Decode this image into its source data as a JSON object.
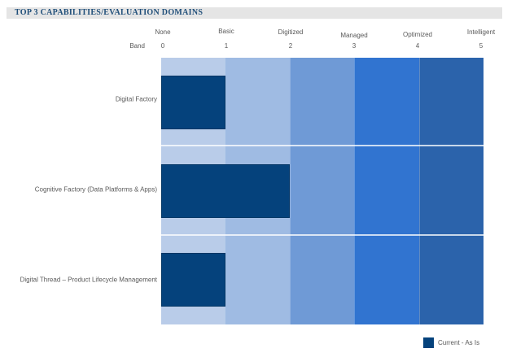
{
  "header": {
    "title": "TOP 3 CAPABILITIES/EVALUATION DOMAINS"
  },
  "chart_data": {
    "type": "bar",
    "orientation": "horizontal",
    "title": "TOP 3 CAPABILITIES/EVALUATION DOMAINS",
    "categories": [
      "Digital Factory",
      "Cognitive Factory (Data Platforms & Apps)",
      "Digital Thread – Product Lifecycle Management"
    ],
    "series": [
      {
        "name": "Current - As Is",
        "values": [
          1,
          2,
          1
        ],
        "color": "#05427c"
      }
    ],
    "values": [
      1,
      2,
      1
    ],
    "x_axis": {
      "label": "Band",
      "ticks": [
        "0",
        "1",
        "2",
        "3",
        "4",
        "5"
      ],
      "tick_names": [
        "None",
        "Basic",
        "Digitized",
        "Managed",
        "Optimized",
        "Intelligent"
      ],
      "range": [
        0,
        5
      ],
      "grid": false
    },
    "background_bands": [
      {
        "from": 0,
        "to": 1,
        "level": "None",
        "color": "#b9cce9"
      },
      {
        "from": 1,
        "to": 2,
        "level": "Basic",
        "color": "#9fbbe3"
      },
      {
        "from": 2,
        "to": 3,
        "level": "Digitized",
        "color": "#6f9ad6"
      },
      {
        "from": 3,
        "to": 4,
        "level": "Managed",
        "color": "#3174d0"
      },
      {
        "from": 4,
        "to": 5,
        "level": "Optimized-Intelligent",
        "color": "#2b63ab"
      }
    ],
    "band_colors": [
      "#b9cce9",
      "#9fbbe3",
      "#6f9ad6",
      "#3174d0",
      "#2b63ab"
    ],
    "bar_color": "#05427c",
    "legend": {
      "label": "Current - As Is",
      "position": "bottom-right",
      "color": "#05427c"
    },
    "title_colors": {
      "text": "#1f4e79",
      "background": "#e5e5e5"
    },
    "label_color": "#595959"
  }
}
